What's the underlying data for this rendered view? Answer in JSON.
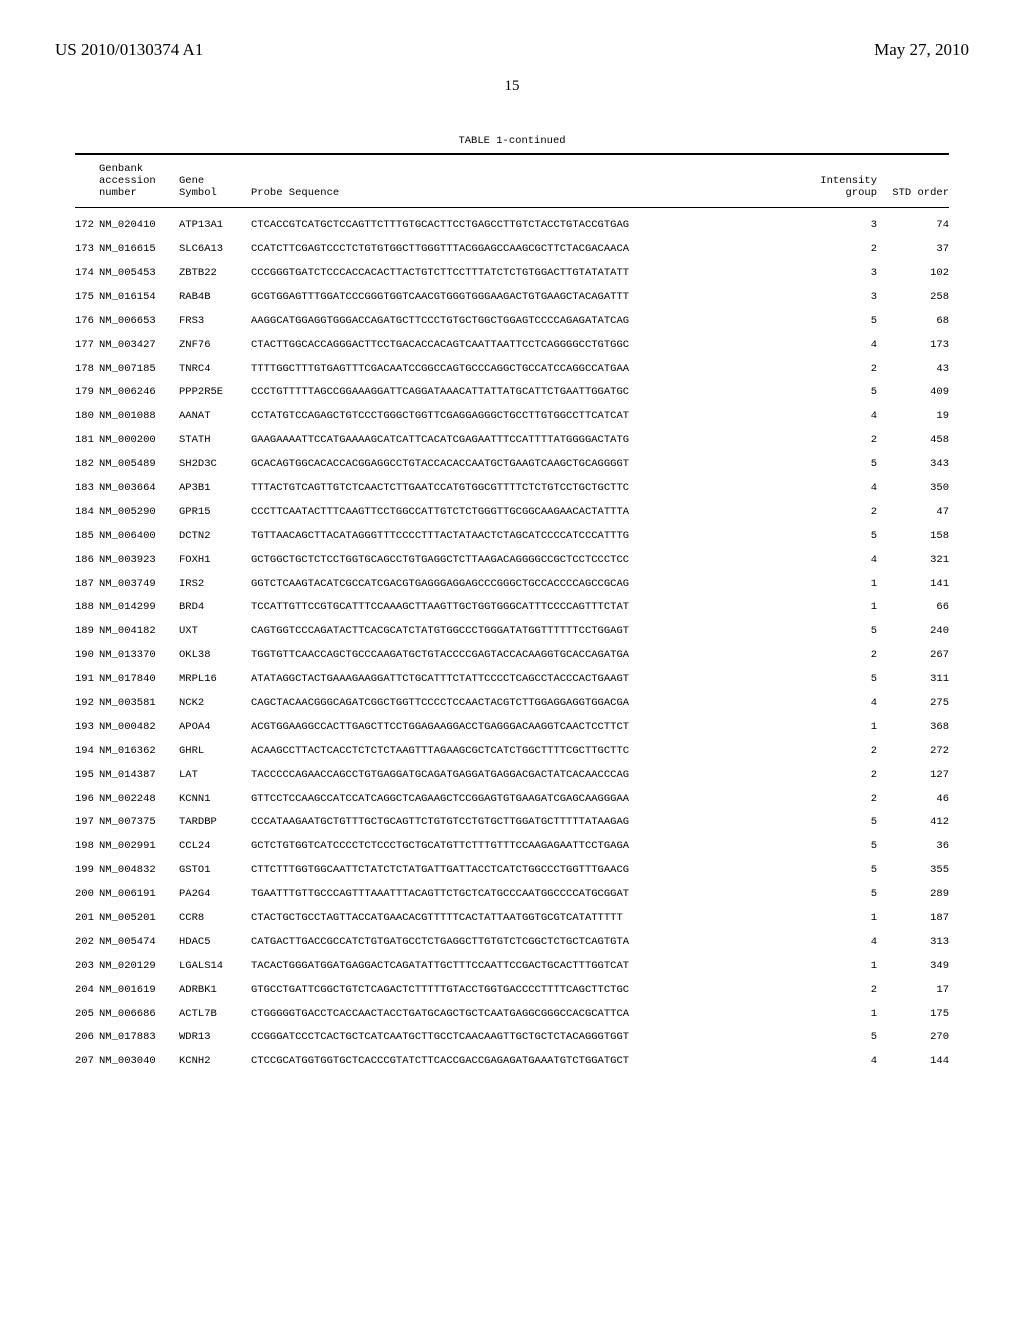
{
  "header": {
    "publication_number": "US 2010/0130374 A1",
    "publication_date": "May 27, 2010",
    "page_number": "15"
  },
  "table": {
    "title": "TABLE 1-continued",
    "columns": {
      "accession_hdr1": "Genbank",
      "accession_hdr2": "accession",
      "accession_hdr3": "number",
      "gene_hdr1": "Gene",
      "gene_hdr2": "Symbol",
      "probe_hdr": "Probe Sequence",
      "intensity_hdr1": "Intensity",
      "intensity_hdr2": "group",
      "std_hdr": "STD order"
    },
    "rows": [
      {
        "idx": "172",
        "acc": "NM_020410",
        "sym": "ATP13A1",
        "seq": "CTCACCGTCATGCTCCAGTTCTTTGTGCACTTCCTGAGCCTTGTCTACCTGTACCGTGAG",
        "grp": "3",
        "ord": "74"
      },
      {
        "idx": "173",
        "acc": "NM_016615",
        "sym": "SLC6A13",
        "seq": "CCATCTTCGAGTCCCTCTGTGTGGCTTGGGTTTACGGAGCCAAGCGCTTCTACGACAACA",
        "grp": "2",
        "ord": "37"
      },
      {
        "idx": "174",
        "acc": "NM_005453",
        "sym": "ZBTB22",
        "seq": "CCCGGGTGATCTCCCACCACACTTACTGTCTTCCTTTATCTCTGTGGACTTGTATATATT",
        "grp": "3",
        "ord": "102"
      },
      {
        "idx": "175",
        "acc": "NM_016154",
        "sym": "RAB4B",
        "seq": "GCGTGGAGTTTGGATCCCGGGTGGTCAACGTGGGTGGGAAGACTGTGAAGCTACAGATTT",
        "grp": "3",
        "ord": "258"
      },
      {
        "idx": "176",
        "acc": "NM_006653",
        "sym": "FRS3",
        "seq": "AAGGCATGGAGGTGGGACCAGATGCTTCCCTGTGCTGGCTGGAGTCCCCAGAGATATCAG",
        "grp": "5",
        "ord": "68"
      },
      {
        "idx": "177",
        "acc": "NM_003427",
        "sym": "ZNF76",
        "seq": "CTACTTGGCACCAGGGACTTCCTGACACCACAGTCAATTAATTCCTCAGGGGCCTGTGGC",
        "grp": "4",
        "ord": "173"
      },
      {
        "idx": "178",
        "acc": "NM_007185",
        "sym": "TNRC4",
        "seq": "TTTTGGCTTTGTGAGTTTCGACAATCCGGCCAGTGCCCAGGCTGCCATCCAGGCCATGAA",
        "grp": "2",
        "ord": "43"
      },
      {
        "idx": "179",
        "acc": "NM_006246",
        "sym": "PPP2R5E",
        "seq": "CCCTGTTTTTAGCCGGAAAGGATTCAGGATAAACATTATTATGCATTCTGAATTGGATGC",
        "grp": "5",
        "ord": "409"
      },
      {
        "idx": "180",
        "acc": "NM_001088",
        "sym": "AANAT",
        "seq": "CCTATGTCCAGAGCTGTCCCTGGGCTGGTTCGAGGAGGGCTGCCTTGTGGCCTTCATCAT",
        "grp": "4",
        "ord": "19"
      },
      {
        "idx": "181",
        "acc": "NM_000200",
        "sym": "STATH",
        "seq": "GAAGAAAATTCCATGAAAAGCATCATTCACATCGAGAATTTCCATTTTATGGGGACTATG",
        "grp": "2",
        "ord": "458"
      },
      {
        "idx": "182",
        "acc": "NM_005489",
        "sym": "SH2D3C",
        "seq": "GCACAGTGGCACACCACGGAGGCCTGTACCACACCAATGCTGAAGTCAAGCTGCAGGGGT",
        "grp": "5",
        "ord": "343"
      },
      {
        "idx": "183",
        "acc": "NM_003664",
        "sym": "AP3B1",
        "seq": "TTTACTGTCAGTTGTCTCAACTCTTGAATCCATGTGGCGTTTTCTCTGTCCTGCTGCTTC",
        "grp": "4",
        "ord": "350"
      },
      {
        "idx": "184",
        "acc": "NM_005290",
        "sym": "GPR15",
        "seq": "CCCTTCAATACTTTCAAGTTCCTGGCCATTGTCTCTGGGTTGCGGCAAGAACACTATTTA",
        "grp": "2",
        "ord": "47"
      },
      {
        "idx": "185",
        "acc": "NM_006400",
        "sym": "DCTN2",
        "seq": "TGTTAACAGCTTACATAGGGTTTCCCCTTTACTATAACTCTAGCATCCCCATCCCATTTG",
        "grp": "5",
        "ord": "158"
      },
      {
        "idx": "186",
        "acc": "NM_003923",
        "sym": "FOXH1",
        "seq": "GCTGGCTGCTCTCCTGGTGCAGCCTGTGAGGCTCTTAAGACAGGGGCCGCTCCTCCCTCC",
        "grp": "4",
        "ord": "321"
      },
      {
        "idx": "187",
        "acc": "NM_003749",
        "sym": "IRS2",
        "seq": "GGTCTCAAGTACATCGCCATCGACGTGAGGGAGGAGCCCGGGCTGCCACCCCAGCCGCAG",
        "grp": "1",
        "ord": "141"
      },
      {
        "idx": "188",
        "acc": "NM_014299",
        "sym": "BRD4",
        "seq": "TCCATTGTTCCGTGCATTTCCAAAGCTTAAGTTGCTGGTGGGCATTTCCCCAGTTTCTAT",
        "grp": "1",
        "ord": "66"
      },
      {
        "idx": "189",
        "acc": "NM_004182",
        "sym": "UXT",
        "seq": "CAGTGGTCCCAGATACTTCACGCATCTATGTGGCCCTGGGATATGGTTTTTTCCTGGAGT",
        "grp": "5",
        "ord": "240"
      },
      {
        "idx": "190",
        "acc": "NM_013370",
        "sym": "OKL38",
        "seq": "TGGTGTTCAACCAGCTGCCCAAGATGCTGTACCCCGAGTACCACAAGGTGCACCAGATGA",
        "grp": "2",
        "ord": "267"
      },
      {
        "idx": "191",
        "acc": "NM_017840",
        "sym": "MRPL16",
        "seq": "ATATAGGCTACTGAAAGAAGGATTCTGCATTTCTATTCCCCTCAGCCTACCCACTGAAGT",
        "grp": "5",
        "ord": "311"
      },
      {
        "idx": "192",
        "acc": "NM_003581",
        "sym": "NCK2",
        "seq": "CAGCTACAACGGGCAGATCGGCTGGTTCCCCTCCAACTACGTCTTGGAGGAGGTGGACGA",
        "grp": "4",
        "ord": "275"
      },
      {
        "idx": "193",
        "acc": "NM_000482",
        "sym": "APOA4",
        "seq": "ACGTGGAAGGCCACTTGAGCTTCCTGGAGAAGGACCTGAGGGACAAGGTCAACTCCTTCT",
        "grp": "1",
        "ord": "368"
      },
      {
        "idx": "194",
        "acc": "NM_016362",
        "sym": "GHRL",
        "seq": "ACAAGCCTTACTCACCTCTCTCTAAGTTTAGAAGCGCTCATCTGGCTTTTCGCTTGCTTC",
        "grp": "2",
        "ord": "272"
      },
      {
        "idx": "195",
        "acc": "NM_014387",
        "sym": "LAT",
        "seq": "TACCCCCAGAACCAGCCTGTGAGGATGCAGATGAGGATGAGGACGACTATCACAACCCAG",
        "grp": "2",
        "ord": "127"
      },
      {
        "idx": "196",
        "acc": "NM_002248",
        "sym": "KCNN1",
        "seq": "GTTCCTCCAAGCCATCCATCAGGCTCAGAAGCTCCGGAGTGTGAAGATCGAGCAAGGGAA",
        "grp": "2",
        "ord": "46"
      },
      {
        "idx": "197",
        "acc": "NM_007375",
        "sym": "TARDBP",
        "seq": "CCCATAAGAATGCTGTTTGCTGCAGTTCTGTGTCCTGTGCTTGGATGCTTTTTATAAGAG",
        "grp": "5",
        "ord": "412"
      },
      {
        "idx": "198",
        "acc": "NM_002991",
        "sym": "CCL24",
        "seq": "GCTCTGTGGTCATCCCCTCTCCCTGCTGCATGTTCTTTGTTTCCAAGAGAATTCCTGAGA",
        "grp": "5",
        "ord": "36"
      },
      {
        "idx": "199",
        "acc": "NM_004832",
        "sym": "GSTO1",
        "seq": "CTTCTTTGGTGGCAATTCTATCTCTATGATTGATTACCTCATCTGGCCCTGGTTTGAACG",
        "grp": "5",
        "ord": "355"
      },
      {
        "idx": "200",
        "acc": "NM_006191",
        "sym": "PA2G4",
        "seq": "TGAATTTGTTGCCCAGTTTAAATTTACAGTTCTGCTCATGCCCAATGGCCCCATGCGGAT",
        "grp": "5",
        "ord": "289"
      },
      {
        "idx": "201",
        "acc": "NM_005201",
        "sym": "CCR8",
        "seq": "CTACTGCTGCCTAGTTACCATGAACACGTTTTTCACTATTAATGGTGCGTCATATTTTT",
        "grp": "1",
        "ord": "187"
      },
      {
        "idx": "202",
        "acc": "NM_005474",
        "sym": "HDAC5",
        "seq": "CATGACTTGACCGCCATCTGTGATGCCTCTGAGGCTTGTGTCTCGGCTCTGCTCAGTGTA",
        "grp": "4",
        "ord": "313"
      },
      {
        "idx": "203",
        "acc": "NM_020129",
        "sym": "LGALS14",
        "seq": "TACACTGGGATGGATGAGGACTCAGATATTGCTTTCCAATTCCGACTGCACTTTGGTCAT",
        "grp": "1",
        "ord": "349"
      },
      {
        "idx": "204",
        "acc": "NM_001619",
        "sym": "ADRBK1",
        "seq": "GTGCCTGATTCGGCTGTCTCAGACTCTTTTTGTACCTGGTGACCCCTTTTCAGCTTCTGC",
        "grp": "2",
        "ord": "17"
      },
      {
        "idx": "205",
        "acc": "NM_006686",
        "sym": "ACTL7B",
        "seq": "CTGGGGGTGACCTCACCAACTACCTGATGCAGCTGCTCAATGAGGCGGGCCACGCATTCA",
        "grp": "1",
        "ord": "175"
      },
      {
        "idx": "206",
        "acc": "NM_017883",
        "sym": "WDR13",
        "seq": "CCGGGATCCCTCACTGCTCATCAATGCTTGCCTCAACAAGTTGCTGCTCTACAGGGTGGT",
        "grp": "5",
        "ord": "270"
      },
      {
        "idx": "207",
        "acc": "NM_003040",
        "sym": "KCNH2",
        "seq": "CTCCGCATGGTGGTGCTCACCCGTATCTTCACCGACCGAGAGATGAAATGTCTGGATGCT",
        "grp": "4",
        "ord": "144"
      }
    ]
  }
}
